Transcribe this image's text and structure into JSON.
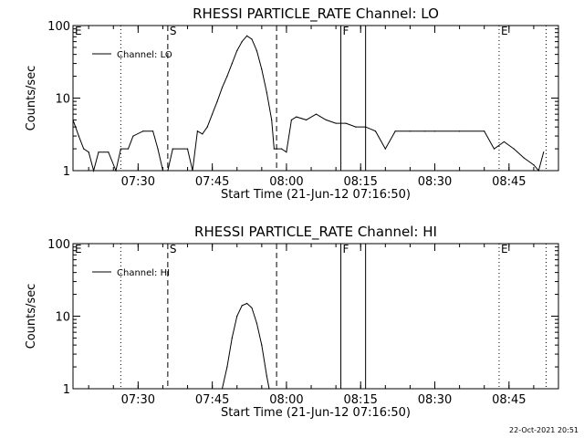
{
  "chart_data": [
    {
      "type": "line",
      "title": "RHESSI PARTICLE_RATE Channel: LO",
      "xlabel": "Start Time (21-Jun-12 07:16:50)",
      "ylabel": "Counts/sec",
      "y_scale": "log",
      "ylim": [
        1,
        100
      ],
      "y_ticks": [
        1,
        10,
        100
      ],
      "y_tick_labels": [
        "1",
        "10",
        "100"
      ],
      "xlim": [
        "07:16:50",
        "08:55:00"
      ],
      "x_ticks": [
        "07:30",
        "07:45",
        "08:00",
        "08:15",
        "08:30",
        "08:45"
      ],
      "legend": {
        "label": "Channel: LO",
        "position": "top-left"
      },
      "event_lines": [
        {
          "time": "07:16:50",
          "label": "E",
          "style": "solid"
        },
        {
          "time": "07:26:30",
          "label": "",
          "style": "dotted"
        },
        {
          "time": "07:36:00",
          "label": "S",
          "style": "dashed"
        },
        {
          "time": "07:58:00",
          "label": "",
          "style": "dashed"
        },
        {
          "time": "08:11:00",
          "label": "F",
          "style": "solid"
        },
        {
          "time": "08:16:00",
          "label": "",
          "style": "solid"
        },
        {
          "time": "08:43:00",
          "label": "E",
          "style": "dotted"
        },
        {
          "time": "08:52:30",
          "label": "",
          "style": "dotted"
        }
      ],
      "series": [
        {
          "name": "Channel: LO",
          "points": [
            [
              "07:16:50",
              5
            ],
            [
              "07:18:00",
              3
            ],
            [
              "07:19:00",
              2
            ],
            [
              "07:20:00",
              1.8
            ],
            [
              "07:21:00",
              1
            ],
            [
              "07:22:00",
              1.8
            ],
            [
              "07:24:00",
              1.8
            ],
            [
              "07:25:30",
              1
            ],
            [
              "07:26:30",
              2
            ],
            [
              "07:28:00",
              2
            ],
            [
              "07:29:00",
              3
            ],
            [
              "07:31:00",
              3.5
            ],
            [
              "07:33:00",
              3.5
            ],
            [
              "07:34:00",
              2
            ],
            [
              "07:35:00",
              1
            ],
            [
              "07:36:00",
              1
            ],
            [
              "07:37:00",
              2
            ],
            [
              "07:40:00",
              2
            ],
            [
              "07:41:00",
              1
            ],
            [
              "07:42:00",
              3.5
            ],
            [
              "07:43:00",
              3.2
            ],
            [
              "07:44:00",
              4
            ],
            [
              "07:45:00",
              6
            ],
            [
              "07:46:00",
              9
            ],
            [
              "07:47:00",
              14
            ],
            [
              "07:48:00",
              20
            ],
            [
              "07:49:00",
              30
            ],
            [
              "07:50:00",
              45
            ],
            [
              "07:51:00",
              60
            ],
            [
              "07:52:00",
              72
            ],
            [
              "07:53:00",
              65
            ],
            [
              "07:54:00",
              45
            ],
            [
              "07:55:00",
              25
            ],
            [
              "07:56:00",
              12
            ],
            [
              "07:57:00",
              5
            ],
            [
              "07:57:30",
              2
            ],
            [
              "07:58:00",
              2
            ],
            [
              "07:59:00",
              2
            ],
            [
              "08:00:00",
              1.8
            ],
            [
              "08:01:00",
              5
            ],
            [
              "08:02:00",
              5.5
            ],
            [
              "08:04:00",
              5
            ],
            [
              "08:06:00",
              6
            ],
            [
              "08:08:00",
              5
            ],
            [
              "08:10:00",
              4.5
            ],
            [
              "08:12:00",
              4.5
            ],
            [
              "08:14:00",
              4
            ],
            [
              "08:16:00",
              4
            ],
            [
              "08:18:00",
              3.5
            ],
            [
              "08:20:00",
              2
            ],
            [
              "08:22:00",
              3.5
            ],
            [
              "08:25:00",
              3.5
            ],
            [
              "08:28:00",
              3.5
            ],
            [
              "08:30:00",
              3.5
            ],
            [
              "08:35:00",
              3.5
            ],
            [
              "08:40:00",
              3.5
            ],
            [
              "08:42:00",
              2
            ],
            [
              "08:44:00",
              2.5
            ],
            [
              "08:46:00",
              2
            ],
            [
              "08:48:00",
              1.5
            ],
            [
              "08:50:00",
              1.2
            ],
            [
              "08:51:00",
              1
            ],
            [
              "08:52:00",
              1.8
            ]
          ]
        }
      ]
    },
    {
      "type": "line",
      "title": "RHESSI PARTICLE_RATE Channel: HI",
      "xlabel": "Start Time (21-Jun-12 07:16:50)",
      "ylabel": "Counts/sec",
      "y_scale": "log",
      "ylim": [
        1,
        100
      ],
      "y_ticks": [
        1,
        10,
        100
      ],
      "y_tick_labels": [
        "1",
        "10",
        "100"
      ],
      "xlim": [
        "07:16:50",
        "08:55:00"
      ],
      "x_ticks": [
        "07:30",
        "07:45",
        "08:00",
        "08:15",
        "08:30",
        "08:45"
      ],
      "legend": {
        "label": "Channel: HI",
        "position": "top-left"
      },
      "event_lines": [
        {
          "time": "07:16:50",
          "label": "E",
          "style": "solid"
        },
        {
          "time": "07:26:30",
          "label": "",
          "style": "dotted"
        },
        {
          "time": "07:36:00",
          "label": "S",
          "style": "dashed"
        },
        {
          "time": "07:58:00",
          "label": "",
          "style": "dashed"
        },
        {
          "time": "08:11:00",
          "label": "F",
          "style": "solid"
        },
        {
          "time": "08:16:00",
          "label": "",
          "style": "solid"
        },
        {
          "time": "08:43:00",
          "label": "E",
          "style": "dotted"
        },
        {
          "time": "08:52:30",
          "label": "",
          "style": "dotted"
        }
      ],
      "series": [
        {
          "name": "Channel: HI",
          "points": [
            [
              "07:47:00",
              1
            ],
            [
              "07:48:00",
              2
            ],
            [
              "07:49:00",
              5
            ],
            [
              "07:50:00",
              10
            ],
            [
              "07:51:00",
              14
            ],
            [
              "07:52:00",
              15
            ],
            [
              "07:53:00",
              13
            ],
            [
              "07:54:00",
              8
            ],
            [
              "07:55:00",
              4
            ],
            [
              "07:56:00",
              1.5
            ],
            [
              "07:56:30",
              1
            ]
          ]
        }
      ]
    }
  ],
  "footer": {
    "timestamp": "22-Oct-2021 20:51"
  }
}
